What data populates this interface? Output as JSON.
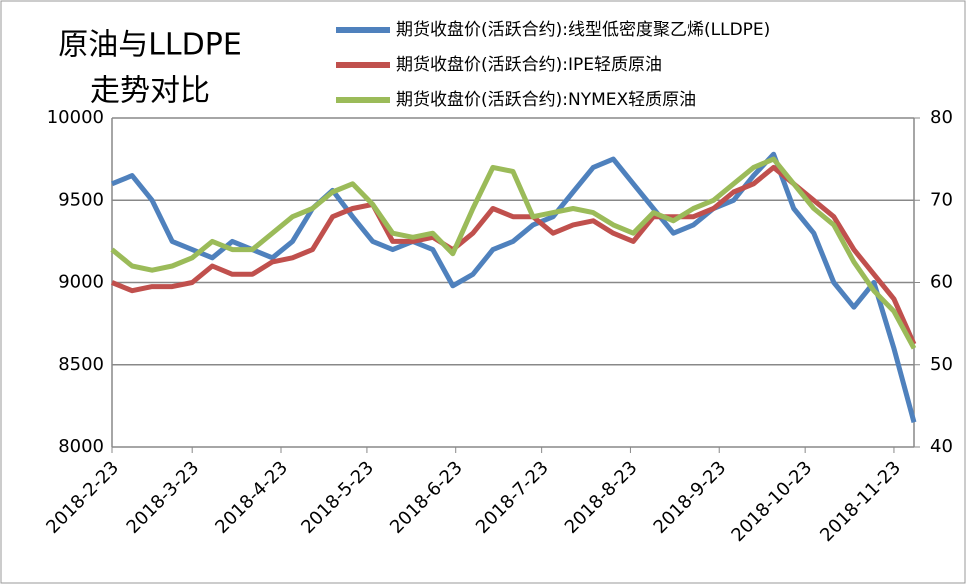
{
  "chart_data": {
    "type": "line",
    "title": [
      "原油与LLDPE",
      "走势对比"
    ],
    "x": [
      "2018-2-23",
      "2018-3-2",
      "2018-3-9",
      "2018-3-16",
      "2018-3-23",
      "2018-3-30",
      "2018-4-6",
      "2018-4-13",
      "2018-4-20",
      "2018-4-27",
      "2018-5-4",
      "2018-5-11",
      "2018-5-18",
      "2018-5-25",
      "2018-6-1",
      "2018-6-8",
      "2018-6-15",
      "2018-6-22",
      "2018-6-29",
      "2018-7-6",
      "2018-7-13",
      "2018-7-20",
      "2018-7-27",
      "2018-8-3",
      "2018-8-10",
      "2018-8-17",
      "2018-8-24",
      "2018-8-31",
      "2018-9-7",
      "2018-9-14",
      "2018-9-21",
      "2018-9-28",
      "2018-10-5",
      "2018-10-12",
      "2018-10-19",
      "2018-10-26",
      "2018-11-2",
      "2018-11-9",
      "2018-11-16",
      "2018-11-23",
      "2018-11-30"
    ],
    "series": [
      {
        "name": "期货收盘价(活跃合约):线型低密度聚乙烯(LLDPE)",
        "color": "#4f81bd",
        "axis": "y",
        "values": [
          9600,
          9650,
          9500,
          9250,
          9200,
          9150,
          9250,
          9200,
          9150,
          9250,
          9450,
          9560,
          9400,
          9250,
          9200,
          9250,
          9200,
          8980,
          9050,
          9200,
          9250,
          9350,
          9400,
          9550,
          9700,
          9750,
          9600,
          9450,
          9300,
          9350,
          9450,
          9500,
          9650,
          9780,
          9450,
          9300,
          9000,
          8850,
          9000,
          8600,
          8150
        ]
      },
      {
        "name": "期货收盘价(活跃合约):IPE轻质原油",
        "color": "#c0504d",
        "axis": "y2",
        "values": [
          60,
          59,
          59.5,
          59.5,
          60,
          62,
          61,
          61,
          62.5,
          63,
          64,
          68,
          69,
          69.5,
          65,
          65,
          65.5,
          64,
          66,
          69,
          68,
          68,
          66,
          67,
          67.5,
          66,
          65,
          68,
          68,
          68,
          69,
          71,
          72,
          74,
          72,
          70,
          68,
          64,
          61,
          58,
          52.5
        ]
      },
      {
        "name": "期货收盘价(活跃合约):NYMEX轻质原油",
        "color": "#9bbb59",
        "axis": "y2",
        "values": [
          64,
          62,
          61.5,
          62,
          63,
          65,
          64,
          64,
          66,
          68,
          69,
          71,
          72,
          69.5,
          66,
          65.5,
          66,
          63.5,
          69,
          74,
          73.5,
          68,
          68.5,
          69,
          68.5,
          67,
          66,
          68.5,
          67.5,
          69,
          70,
          72,
          74,
          75,
          72,
          69,
          67,
          62.5,
          59,
          56.5,
          52
        ]
      }
    ],
    "xlim": [
      "2018-2-23",
      "2018-11-30"
    ],
    "xticks": [
      "2018-2-23",
      "2018-3-23",
      "2018-4-23",
      "2018-5-23",
      "2018-6-23",
      "2018-7-23",
      "2018-8-23",
      "2018-9-23",
      "2018-10-23",
      "2018-11-23"
    ],
    "ylim": [
      8000,
      10000
    ],
    "yticks": [
      8000,
      8500,
      9000,
      9500,
      10000
    ],
    "y2lim": [
      40,
      80
    ],
    "y2ticks": [
      40,
      50,
      60,
      70,
      80
    ],
    "grid": true
  }
}
